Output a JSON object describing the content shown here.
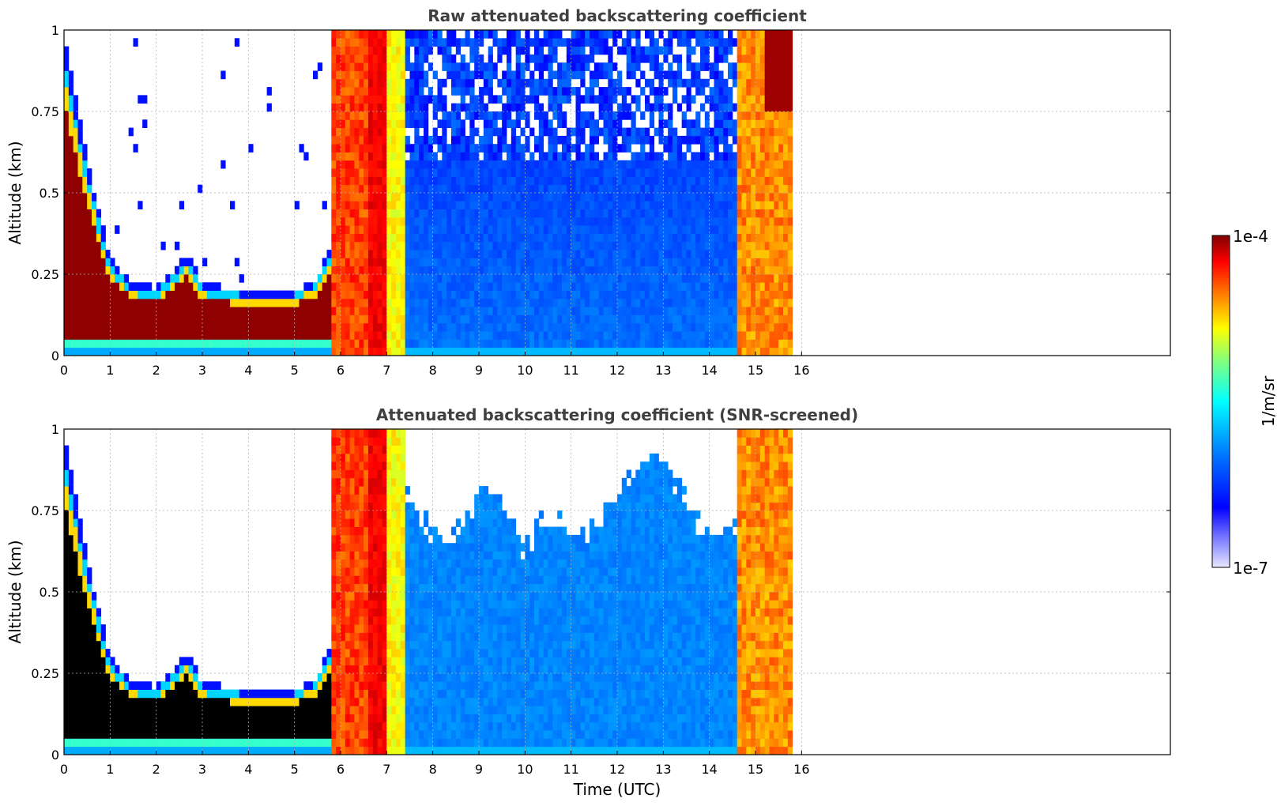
{
  "chart_data": [
    {
      "type": "heatmap",
      "title": "Raw attenuated backscattering coefficient",
      "xlabel": "",
      "ylabel": "Altitude (km)",
      "xlim": [
        0,
        24
      ],
      "ylim": [
        0,
        1
      ],
      "x_ticks": [
        "0",
        "1",
        "2",
        "3",
        "4",
        "5",
        "6",
        "7",
        "8",
        "9",
        "10",
        "11",
        "12",
        "13",
        "14",
        "15",
        "16"
      ],
      "y_ticks": [
        "0",
        "0.25",
        "0.5",
        "0.75",
        "1"
      ],
      "grid": true,
      "data_coverage_x": [
        0,
        15.8
      ],
      "boundary_layer_top_km": {
        "x": [
          0,
          0.5,
          1,
          1.5,
          2,
          2.5,
          2.7,
          3,
          4,
          5,
          5.5,
          5.8
        ],
        "y": [
          1.0,
          0.6,
          0.3,
          0.22,
          0.21,
          0.28,
          0.32,
          0.22,
          0.2,
          0.2,
          0.24,
          0.35
        ]
      },
      "colorscale": "jet",
      "value_range": [
        "1e-7",
        "1e-4"
      ]
    },
    {
      "type": "heatmap",
      "title": "Attenuated backscattering coefficient (SNR-screened)",
      "xlabel": "Time (UTC)",
      "ylabel": "Altitude (km)",
      "xlim": [
        0,
        24
      ],
      "ylim": [
        0,
        1
      ],
      "x_ticks": [
        "0",
        "1",
        "2",
        "3",
        "4",
        "5",
        "6",
        "7",
        "8",
        "9",
        "10",
        "11",
        "12",
        "13",
        "14",
        "15",
        "16"
      ],
      "y_ticks": [
        "0",
        "0.25",
        "0.5",
        "0.75",
        "1"
      ],
      "grid": true,
      "data_coverage_x": [
        0,
        15.8
      ],
      "colorscale": "jet",
      "value_range": [
        "1e-7",
        "1e-4"
      ]
    }
  ],
  "colorbar": {
    "label": "1/m/sr",
    "max_label": "1e-4",
    "min_label": "1e-7",
    "colors": [
      "#7f0000",
      "#ff0000",
      "#ff8000",
      "#ffff00",
      "#80ff80",
      "#00ffff",
      "#0080ff",
      "#0000ff",
      "#e8e8ff"
    ]
  }
}
